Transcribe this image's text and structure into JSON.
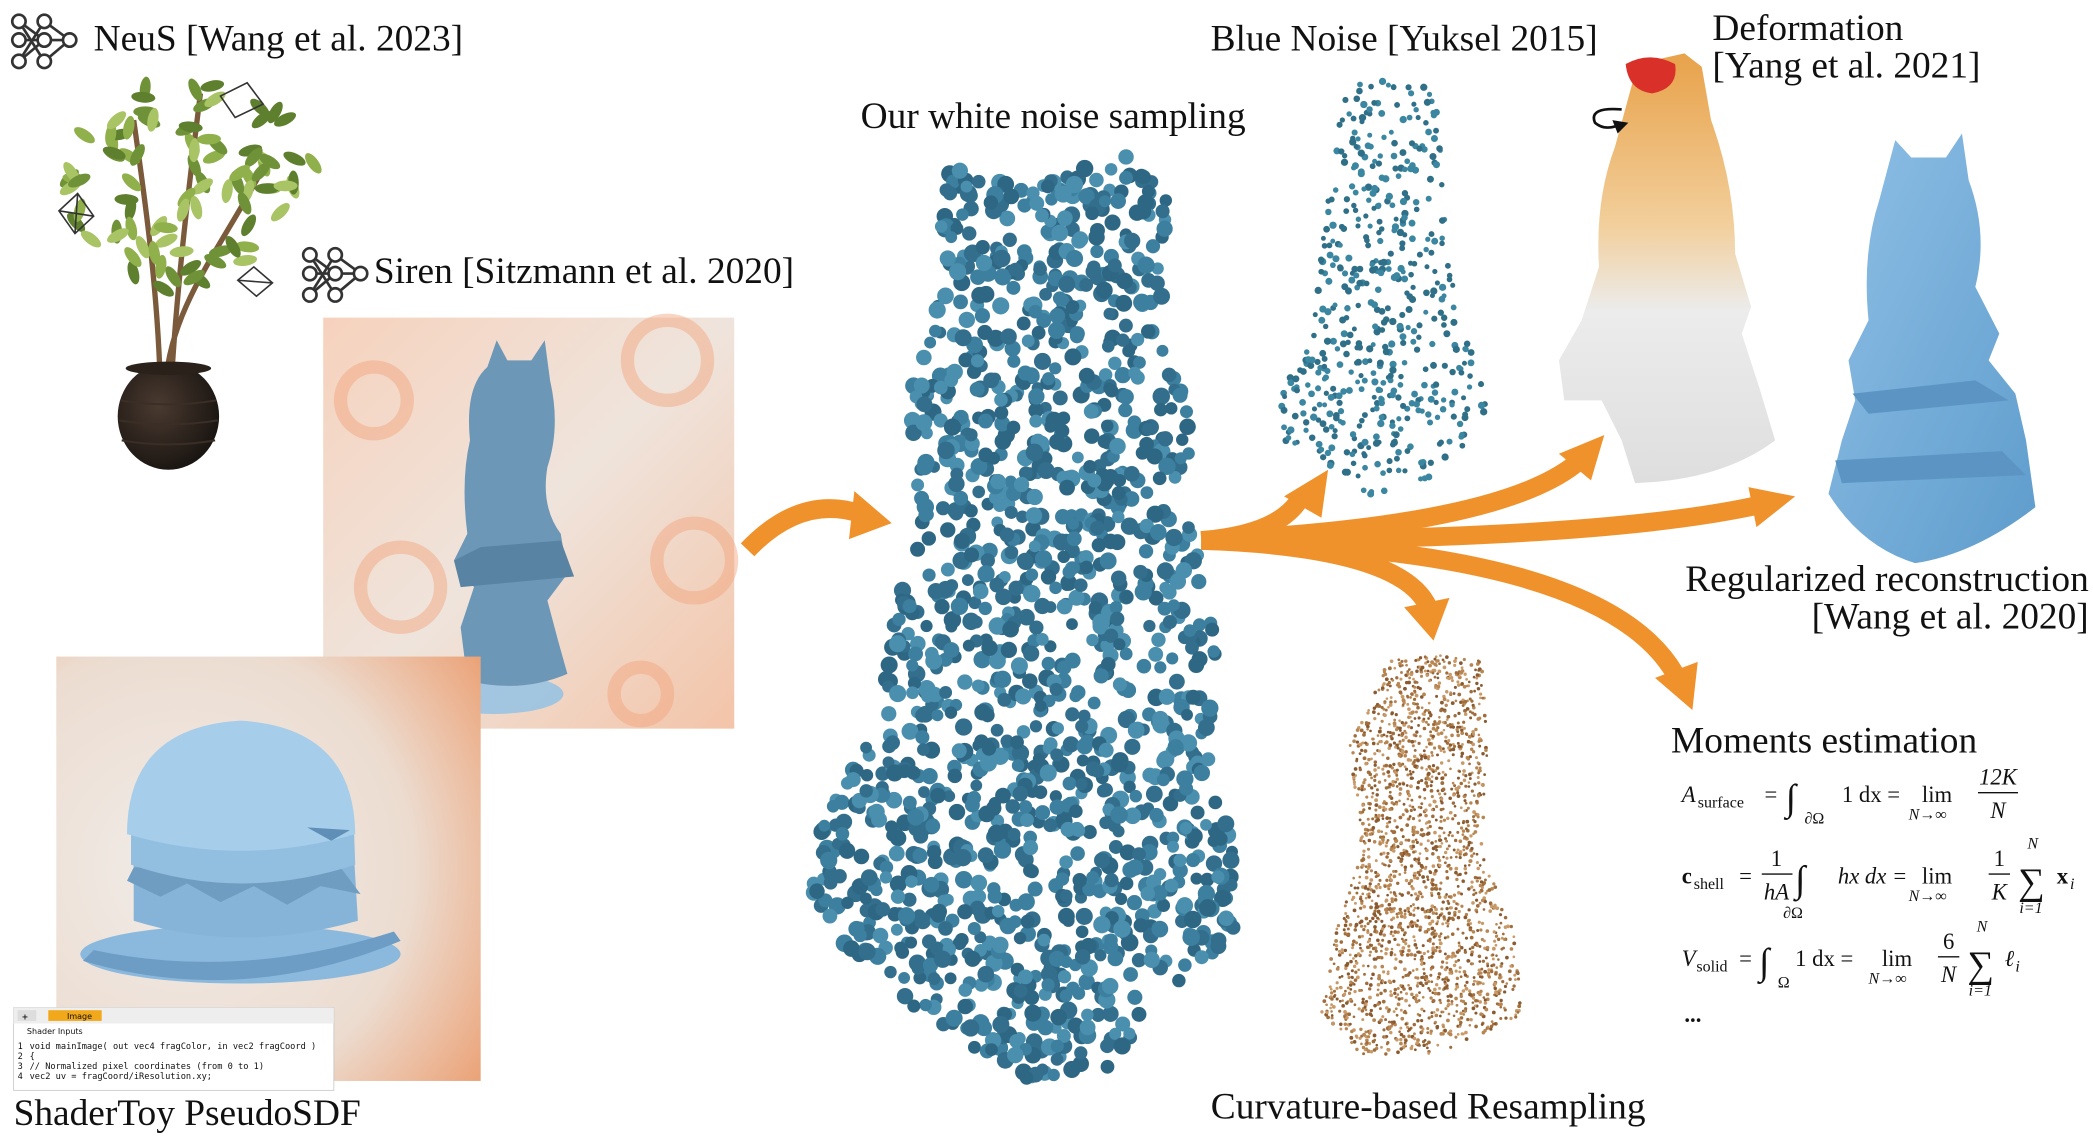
{
  "labels": {
    "neus": "NeuS [Wang et al. 2023]",
    "siren": "Siren [Sitzmann et al. 2020]",
    "shadertoy": "ShaderToy PseudoSDF",
    "white_noise": "Our white noise sampling",
    "blue_noise": "Blue Noise [Yuksel 2015]",
    "deformation": [
      "Deformation",
      "[Yang et al. 2021]"
    ],
    "regularized": [
      "Regularized reconstruction",
      "[Wang et al. 2020]"
    ],
    "curvature": "Curvature-based Resampling"
  },
  "shader_panel": {
    "tab": "Image",
    "inputs": "Shader Inputs",
    "code": [
      "void mainImage( out vec4 fragColor, in vec2 fragCoord )",
      "{",
      "    // Normalized pixel coordinates (from 0 to 1)",
      "    vec2 uv = fragCoord/iResolution.xy;"
    ]
  },
  "moments": {
    "title": "Moments estimation",
    "eq1": {
      "lhs": "A",
      "sub": "surface",
      "eq": "=",
      "int": "∫",
      "dom": "∂Ω",
      "body": "1 dx =",
      "lim": "lim",
      "limsub": "N→∞",
      "num": "12K",
      "den": "N"
    },
    "eq2": {
      "lhs": "c",
      "sub": "shell",
      "eq": "=",
      "fnum": "1",
      "fden": "hA",
      "int": "∫",
      "dom": "∂Ω",
      "body": "hx dx =",
      "lim": "lim",
      "limsub": "N→∞",
      "num": "1",
      "den": "K",
      "sum": "∑",
      "sup": "N",
      "sumsub": "i=1",
      "term": "x",
      "termsub": "i"
    },
    "eq3": {
      "lhs": "V",
      "sub": "solid",
      "eq": "=",
      "int": "∫",
      "dom": "Ω",
      "body": "1 dx =",
      "lim": "lim",
      "limsub": "N→∞",
      "num": "6",
      "den": "N",
      "sum": "∑",
      "sup": "N",
      "sumsub": "i=1",
      "term": "ℓ",
      "termsub": "i"
    },
    "ellipsis": "..."
  }
}
